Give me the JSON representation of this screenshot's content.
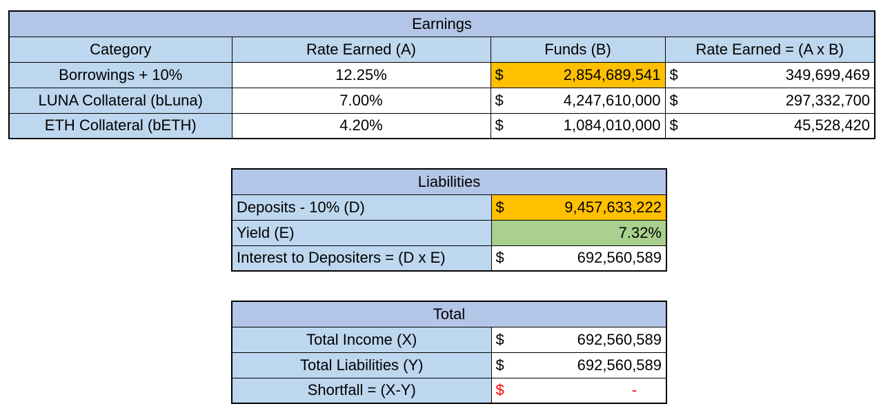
{
  "earnings": {
    "title": "Earnings",
    "headers": [
      "Category",
      "Rate Earned (A)",
      "Funds (B)",
      "Rate Earned = (A x B)"
    ],
    "rows": [
      {
        "category": "Borrowings + 10%",
        "rate": "12.25%",
        "funds_cur": "$",
        "funds": "2,854,689,541",
        "earned_cur": "$",
        "earned": "349,699,469"
      },
      {
        "category": "LUNA Collateral (bLuna)",
        "rate": "7.00%",
        "funds_cur": "$",
        "funds": "4,247,610,000",
        "earned_cur": "$",
        "earned": "297,332,700"
      },
      {
        "category": "ETH Collateral (bETH)",
        "rate": "4.20%",
        "funds_cur": "$",
        "funds": "1,084,010,000",
        "earned_cur": "$",
        "earned": "45,528,420"
      }
    ]
  },
  "liabilities": {
    "title": "Liabilities",
    "deposits_label": "Deposits - 10% (D)",
    "deposits_cur": "$",
    "deposits_value": "9,457,633,222",
    "yield_label": "Yield (E)",
    "yield_value": "7.32%",
    "interest_label": "Interest to Depositers = (D x E)",
    "interest_cur": "$",
    "interest_value": "692,560,589"
  },
  "total": {
    "title": "Total",
    "income_label": "Total Income (X)",
    "income_cur": "$",
    "income_value": "692,560,589",
    "liab_label": "Total Liabilities (Y)",
    "liab_cur": "$",
    "liab_value": "692,560,589",
    "shortfall_label": "Shortfall = (X-Y)",
    "shortfall_cur": "$",
    "shortfall_value": "-"
  },
  "colors": {
    "header_blue": "#b4c6e7",
    "label_blue": "#bdd7ee",
    "highlight_orange": "#ffc000",
    "highlight_green": "#a9d08e",
    "negative_red": "#ff0000"
  }
}
